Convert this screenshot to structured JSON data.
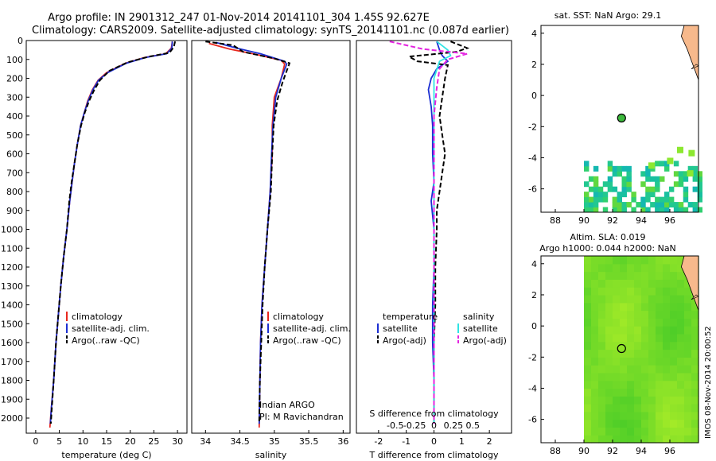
{
  "header": {
    "line1": "Argo profile: IN 2901312_247 01-Nov-2014 20141101_304 1.45S 92.627E",
    "line2": "Climatology: CARS2009. Satellite-adjusted climatology: synTS_20141101.nc (0.087d earlier)"
  },
  "colors": {
    "climatology": "#e8281e",
    "satellite": "#1c2fd2",
    "argo": "#000000",
    "sal_satellite": "#2fe4e4",
    "sal_argo": "#e424e0",
    "land": "#f7b98c"
  },
  "chart_data": [
    {
      "id": "temperature",
      "type": "line",
      "xlabel": "temperature (deg C)",
      "ylabel": "",
      "xlim": [
        -2,
        32
      ],
      "ylim": [
        2080,
        0
      ],
      "xticks": [
        0,
        5,
        10,
        15,
        20,
        25,
        30
      ],
      "yticks": [
        0,
        100,
        200,
        300,
        400,
        500,
        600,
        700,
        800,
        900,
        1000,
        1100,
        1200,
        1300,
        1400,
        1500,
        1600,
        1700,
        1800,
        1900,
        2000
      ],
      "legend": [
        "climatology",
        "satellite-adj. clim.",
        "Argo(..raw -QC)"
      ],
      "series": [
        {
          "name": "climatology",
          "dashed": false,
          "points": [
            [
              28.9,
              5
            ],
            [
              28.7,
              40
            ],
            [
              27.5,
              70
            ],
            [
              23,
              90
            ],
            [
              19,
              120
            ],
            [
              15,
              170
            ],
            [
              13.2,
              210
            ],
            [
              12,
              260
            ],
            [
              11,
              320
            ],
            [
              10.3,
              380
            ],
            [
              9.5,
              450
            ],
            [
              8.8,
              550
            ],
            [
              8.2,
              650
            ],
            [
              7.7,
              750
            ],
            [
              7.2,
              850
            ],
            [
              6.6,
              1000
            ],
            [
              5.9,
              1150
            ],
            [
              5.3,
              1300
            ],
            [
              4.8,
              1450
            ],
            [
              4.3,
              1600
            ],
            [
              3.8,
              1800
            ],
            [
              3.3,
              1950
            ],
            [
              3,
              2050
            ]
          ]
        },
        {
          "name": "satellite-adj. clim.",
          "dashed": false,
          "points": [
            [
              28.9,
              5
            ],
            [
              28.8,
              40
            ],
            [
              27.7,
              70
            ],
            [
              23.2,
              90
            ],
            [
              19.2,
              120
            ],
            [
              15.2,
              170
            ],
            [
              13.3,
              210
            ],
            [
              12.1,
              260
            ],
            [
              11.1,
              320
            ],
            [
              10.3,
              380
            ],
            [
              9.5,
              450
            ],
            [
              8.8,
              550
            ],
            [
              8.2,
              650
            ],
            [
              7.7,
              750
            ],
            [
              7.2,
              850
            ],
            [
              6.6,
              1000
            ],
            [
              5.9,
              1150
            ],
            [
              5.3,
              1300
            ],
            [
              4.8,
              1450
            ],
            [
              4.3,
              1600
            ],
            [
              3.8,
              1800
            ],
            [
              3.3,
              1950
            ],
            [
              3.1,
              2030
            ]
          ]
        },
        {
          "name": "Argo(..raw -QC)",
          "dashed": true,
          "points": [
            [
              29.5,
              5
            ],
            [
              29.2,
              35
            ],
            [
              28.3,
              65
            ],
            [
              24,
              85
            ],
            [
              19.5,
              115
            ],
            [
              15.6,
              160
            ],
            [
              13.6,
              210
            ],
            [
              12.4,
              260
            ],
            [
              11.3,
              320
            ],
            [
              10.4,
              380
            ],
            [
              9.6,
              450
            ],
            [
              8.8,
              550
            ],
            [
              8.2,
              650
            ],
            [
              7.6,
              750
            ],
            [
              7.1,
              850
            ],
            [
              6.6,
              1000
            ],
            [
              5.9,
              1150
            ],
            [
              5.3,
              1300
            ],
            [
              4.8,
              1450
            ],
            [
              4.3,
              1600
            ],
            [
              3.8,
              1800
            ],
            [
              3.4,
              1950
            ],
            [
              3.2,
              2030
            ]
          ]
        }
      ]
    },
    {
      "id": "salinity",
      "type": "line",
      "xlabel": "salinity",
      "ylabel": "",
      "xlim": [
        33.8,
        36.1
      ],
      "ylim": [
        2080,
        0
      ],
      "xticks": [
        34,
        34.5,
        35,
        35.5,
        36
      ],
      "yticks": [],
      "legend": [
        "climatology",
        "satellite-adj. clim.",
        "Argo(..raw -QC)"
      ],
      "annotations": [
        "Indian ARGO",
        "PI: M Ravichandran"
      ],
      "series": [
        {
          "name": "climatology",
          "dashed": false,
          "points": [
            [
              34.05,
              15
            ],
            [
              34.35,
              45
            ],
            [
              34.75,
              75
            ],
            [
              35.1,
              105
            ],
            [
              35.15,
              125
            ],
            [
              35.1,
              200
            ],
            [
              35.0,
              300
            ],
            [
              34.97,
              450
            ],
            [
              34.97,
              600
            ],
            [
              34.94,
              800
            ],
            [
              34.9,
              1000
            ],
            [
              34.86,
              1200
            ],
            [
              34.82,
              1400
            ],
            [
              34.8,
              1600
            ],
            [
              34.79,
              1800
            ],
            [
              34.78,
              2050
            ]
          ]
        },
        {
          "name": "satellite-adj. clim.",
          "dashed": false,
          "points": [
            [
              34.15,
              10
            ],
            [
              34.45,
              40
            ],
            [
              34.8,
              70
            ],
            [
              35.15,
              110
            ],
            [
              35.18,
              125
            ],
            [
              35.1,
              200
            ],
            [
              35.02,
              300
            ],
            [
              34.98,
              450
            ],
            [
              34.96,
              600
            ],
            [
              34.94,
              800
            ],
            [
              34.9,
              1000
            ],
            [
              34.86,
              1200
            ],
            [
              34.82,
              1400
            ],
            [
              34.8,
              1600
            ],
            [
              34.79,
              1800
            ],
            [
              34.78,
              2030
            ]
          ]
        },
        {
          "name": "Argo(..raw -QC)",
          "dashed": true,
          "points": [
            [
              34.0,
              5
            ],
            [
              34.4,
              25
            ],
            [
              34.55,
              60
            ],
            [
              35.0,
              95
            ],
            [
              35.22,
              120
            ],
            [
              35.12,
              220
            ],
            [
              35.04,
              320
            ],
            [
              34.99,
              450
            ],
            [
              34.97,
              600
            ],
            [
              34.95,
              800
            ],
            [
              34.9,
              1000
            ],
            [
              34.86,
              1200
            ],
            [
              34.83,
              1400
            ],
            [
              34.81,
              1600
            ],
            [
              34.79,
              1800
            ],
            [
              34.78,
              2030
            ]
          ]
        }
      ]
    },
    {
      "id": "difference",
      "type": "line",
      "xlabel": "T difference from climatology",
      "xlabel_top": "S difference from climatology",
      "ylabel": "",
      "xlim": [
        -2.8,
        2.8
      ],
      "ylim": [
        2080,
        0
      ],
      "xticks": [
        -2,
        -1,
        0,
        1,
        2
      ],
      "xticks_sal": [
        "-0.5",
        "-0.25",
        "0",
        "0.25",
        "0.5"
      ],
      "yticks": [],
      "legend_titles": [
        "temperature",
        "salinity"
      ],
      "legend": [
        "satellite",
        "Argo(-adj)",
        "satellite",
        "Argo(-adj)"
      ],
      "series": [
        {
          "name": "satellite",
          "dashed": false,
          "points": [
            [
              0.1,
              5
            ],
            [
              0.2,
              50
            ],
            [
              0.3,
              80
            ],
            [
              0.5,
              110
            ],
            [
              0.1,
              150
            ],
            [
              -0.1,
              200
            ],
            [
              -0.2,
              260
            ],
            [
              -0.1,
              350
            ],
            [
              -0.05,
              450
            ],
            [
              -0.05,
              600
            ],
            [
              0,
              750
            ],
            [
              -0.1,
              850
            ],
            [
              0,
              1000
            ],
            [
              0,
              1200
            ],
            [
              -0.05,
              1400
            ],
            [
              -0.05,
              1600
            ],
            [
              0,
              1800
            ],
            [
              0,
              2030
            ]
          ]
        },
        {
          "name": "Argo(-adj)",
          "dashed": true,
          "points": [
            [
              0.6,
              5
            ],
            [
              1.2,
              40
            ],
            [
              0.8,
              60
            ],
            [
              -0.9,
              85
            ],
            [
              -0.6,
              110
            ],
            [
              0.5,
              130
            ],
            [
              0.4,
              200
            ],
            [
              0.3,
              300
            ],
            [
              0.2,
              400
            ],
            [
              0.3,
              500
            ],
            [
              0.4,
              600
            ],
            [
              0.3,
              700
            ],
            [
              0.2,
              800
            ],
            [
              0.1,
              900
            ],
            [
              0.1,
              1000
            ],
            [
              0.05,
              1200
            ],
            [
              0.05,
              1400
            ],
            [
              0,
              1600
            ],
            [
              0,
              1800
            ],
            [
              0,
              2030
            ]
          ]
        },
        {
          "name": "satellite",
          "dashed": false,
          "points": [
            [
              0.1,
              5
            ],
            [
              0.5,
              50
            ],
            [
              0.6,
              80
            ],
            [
              0.2,
              110
            ],
            [
              0,
              200
            ],
            [
              0,
              400
            ],
            [
              0,
              700
            ],
            [
              0,
              1000
            ],
            [
              0,
              1300
            ],
            [
              0,
              1600
            ],
            [
              0,
              1800
            ],
            [
              0,
              2030
            ]
          ]
        },
        {
          "name": "Argo(-adj)",
          "dashed": true,
          "points": [
            [
              -1.6,
              5
            ],
            [
              -0.4,
              45
            ],
            [
              1.2,
              70
            ],
            [
              0.5,
              100
            ],
            [
              0.2,
              150
            ],
            [
              0.1,
              250
            ],
            [
              0,
              400
            ],
            [
              0,
              700
            ],
            [
              0,
              1000
            ],
            [
              0,
              1300
            ],
            [
              0,
              1600
            ],
            [
              0,
              2030
            ]
          ]
        }
      ]
    },
    {
      "id": "sst_map",
      "type": "heatmap",
      "title": "sat. SST: NaN Argo: 29.1",
      "xlim": [
        87,
        98
      ],
      "ylim": [
        -7.5,
        4.5
      ],
      "xticks": [
        88,
        90,
        92,
        94,
        96
      ],
      "yticks": [
        4,
        2,
        0,
        -2,
        -4,
        -6
      ],
      "argo_position": [
        92.627,
        -1.45
      ]
    },
    {
      "id": "sla_map",
      "type": "heatmap",
      "title_line1": "Altim. SLA: 0.019",
      "title_line2": "Argo h1000: 0.044 h2000: NaN",
      "xlim": [
        87,
        98
      ],
      "ylim": [
        -7.5,
        4.5
      ],
      "xticks": [
        88,
        90,
        92,
        94,
        96
      ],
      "yticks": [
        4,
        2,
        0,
        -2,
        -4,
        -6
      ],
      "argo_position": [
        92.627,
        -1.45
      ]
    }
  ],
  "side_stamp": "IMOS 08-Nov-2014 20:00:52"
}
